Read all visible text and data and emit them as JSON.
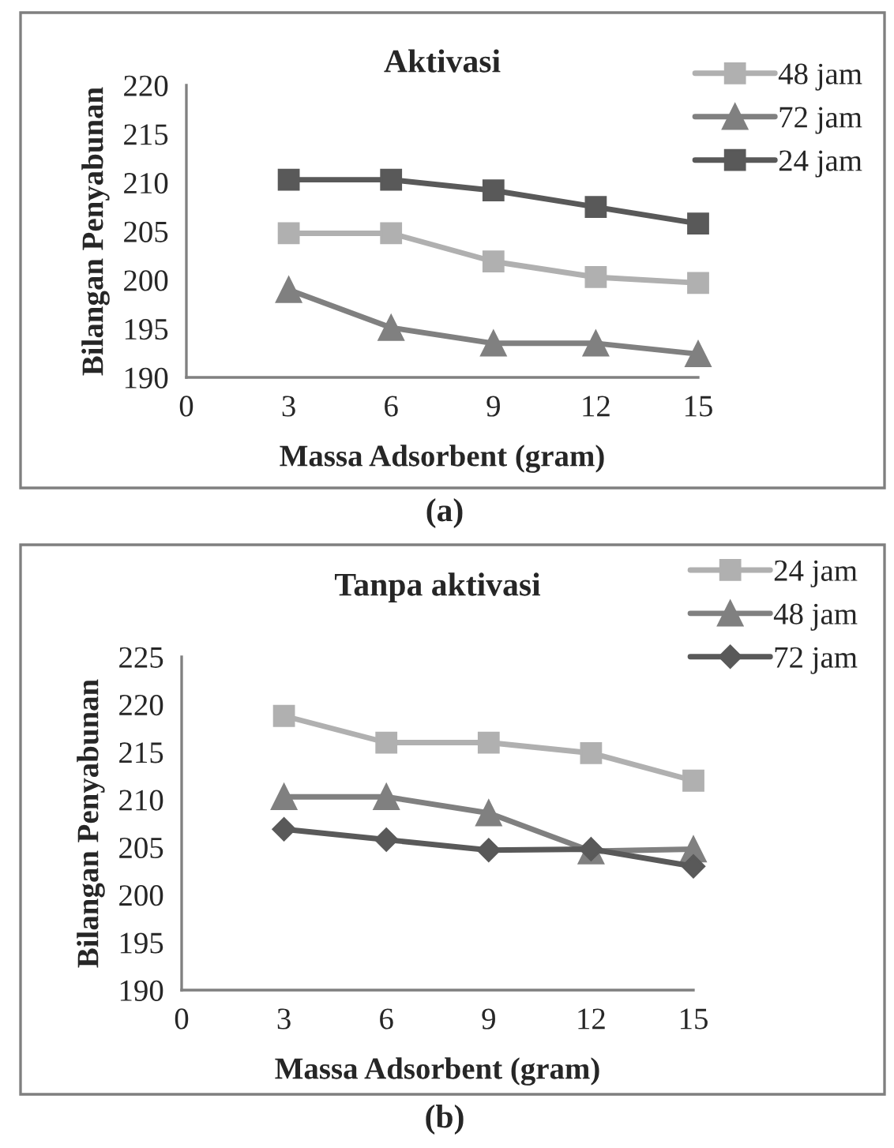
{
  "chart_data": [
    {
      "type": "line",
      "title": "Aktivasi",
      "xlabel": "Massa Adsorbent (gram)",
      "ylabel": "Bilangan Penyabunan",
      "annotations": [
        "(a)"
      ],
      "x": [
        3,
        6,
        9,
        12,
        15
      ],
      "xlim": [
        0,
        15
      ],
      "xticks": [
        0,
        3,
        6,
        9,
        12,
        15
      ],
      "ylim": [
        190,
        220
      ],
      "yticks": [
        190,
        195,
        200,
        205,
        210,
        215,
        220
      ],
      "grid": false,
      "legend": "top right",
      "series": [
        {
          "name": "48 jam",
          "color": "#b0b0b0",
          "marker": "square",
          "values": [
            204.8,
            204.8,
            201.9,
            200.3,
            199.7
          ]
        },
        {
          "name": "72 jam",
          "color": "#808080",
          "marker": "triangle",
          "values": [
            199.0,
            195.1,
            193.5,
            193.5,
            192.4
          ]
        },
        {
          "name": "24 jam",
          "color": "#595959",
          "marker": "square",
          "values": [
            210.3,
            210.3,
            209.2,
            207.5,
            205.8
          ]
        }
      ]
    },
    {
      "type": "line",
      "title": "Tanpa aktivasi",
      "xlabel": "Massa Adsorbent (gram)",
      "ylabel": "Bilangan Penyabunan",
      "annotations": [
        "(b)"
      ],
      "x": [
        3,
        6,
        9,
        12,
        15
      ],
      "xlim": [
        0,
        15
      ],
      "xticks": [
        0,
        3,
        6,
        9,
        12,
        15
      ],
      "ylim": [
        190,
        225
      ],
      "yticks": [
        190,
        195,
        200,
        205,
        210,
        215,
        220,
        225
      ],
      "grid": false,
      "legend": "top right",
      "series": [
        {
          "name": "24 jam",
          "color": "#b0b0b0",
          "marker": "square",
          "values": [
            218.8,
            216.0,
            216.0,
            214.9,
            212.0
          ]
        },
        {
          "name": "48 jam",
          "color": "#808080",
          "marker": "triangle",
          "values": [
            210.3,
            210.3,
            208.6,
            204.6,
            204.8
          ]
        },
        {
          "name": "72 jam",
          "color": "#595959",
          "marker": "diamond",
          "values": [
            206.9,
            205.8,
            204.7,
            204.8,
            203.0
          ]
        }
      ]
    }
  ]
}
